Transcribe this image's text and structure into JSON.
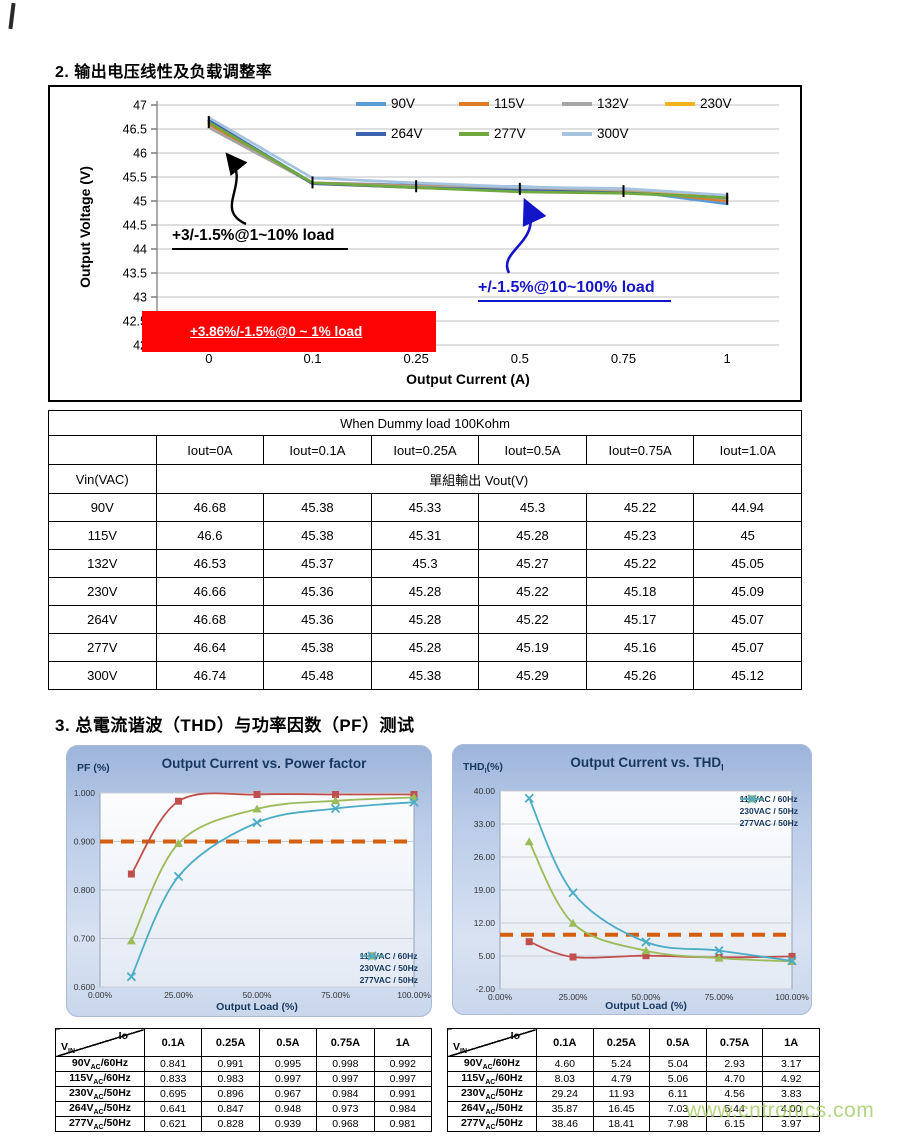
{
  "page": {
    "watermark": "www.cntronics.com"
  },
  "section2": {
    "heading": "2.  输出电压线性及负载调整率"
  },
  "section3": {
    "heading": "3.  总電流谐波（THD）与功率因数（PF）测试"
  },
  "chart_data": [
    {
      "id": "vout-vs-iout",
      "type": "line",
      "title": "",
      "xlabel": "Output Current (A)",
      "ylabel": "Output Voltage (V)",
      "categories": [
        "0",
        "0.1",
        "0.25",
        "0.5",
        "0.75",
        "1"
      ],
      "yticks": [
        "47",
        "46.5",
        "46",
        "45.5",
        "45",
        "44.5",
        "44",
        "43.5",
        "43",
        "42.5",
        "42"
      ],
      "ylim": [
        42,
        47
      ],
      "grid": true,
      "legend_position": "top-inside",
      "series": [
        {
          "name": "90V",
          "color": "#5B9BD5",
          "values": [
            46.68,
            45.38,
            45.33,
            45.3,
            45.22,
            44.94
          ]
        },
        {
          "name": "115V",
          "color": "#E07B2A",
          "values": [
            46.6,
            45.38,
            45.31,
            45.28,
            45.23,
            45.0
          ]
        },
        {
          "name": "132V",
          "color": "#A5A5A5",
          "values": [
            46.53,
            45.37,
            45.3,
            45.27,
            45.22,
            45.05
          ]
        },
        {
          "name": "230V",
          "color": "#F0B51C",
          "values": [
            46.66,
            45.36,
            45.28,
            45.22,
            45.18,
            45.09
          ]
        },
        {
          "name": "264V",
          "color": "#3D63AE",
          "values": [
            46.68,
            45.36,
            45.28,
            45.22,
            45.17,
            45.07
          ]
        },
        {
          "name": "277V",
          "color": "#6FA93F",
          "values": [
            46.64,
            45.38,
            45.28,
            45.19,
            45.16,
            45.07
          ]
        },
        {
          "name": "300V",
          "color": "#A6C3E2",
          "values": [
            46.74,
            45.48,
            45.38,
            45.29,
            45.26,
            45.12
          ]
        }
      ],
      "annotations": {
        "black_note": "+3/-1.5%@1~10% load",
        "blue_note": "+/-1.5%@10~100% load",
        "red_note": "+3.86%/-1.5%@0 ~ 1% load"
      }
    },
    {
      "id": "pf-vs-load",
      "type": "line",
      "title": "Output Current  vs. Power  factor",
      "xlabel": "Output Load (%)",
      "ylabel": "PF (%)",
      "x_percent": [
        10,
        25,
        50,
        75,
        100
      ],
      "xticks": [
        "0.00%",
        "25.00%",
        "50.00%",
        "75.00%",
        "100.00%"
      ],
      "xtick_values": [
        0,
        25,
        50,
        75,
        100
      ],
      "yticks": [
        "1.000",
        "0.900",
        "0.800",
        "0.700",
        "0.600"
      ],
      "ylim": [
        0.6,
        1.0
      ],
      "ref_line": 0.9,
      "ref_color": "#D35F0E",
      "grid": true,
      "legend_position": "bottom-right",
      "series": [
        {
          "name": "115VAC / 60Hz",
          "color": "#C0504D",
          "marker": "square",
          "values": [
            0.833,
            0.983,
            0.997,
            0.997,
            0.997
          ]
        },
        {
          "name": "230VAC / 50Hz",
          "color": "#9BBB59",
          "marker": "triangle",
          "values": [
            0.695,
            0.896,
            0.967,
            0.984,
            0.991
          ]
        },
        {
          "name": "277VAC / 50Hz",
          "color": "#4BACC6",
          "marker": "x",
          "values": [
            0.621,
            0.828,
            0.939,
            0.968,
            0.981
          ]
        }
      ]
    },
    {
      "id": "thd-vs-load",
      "type": "line",
      "title": "Output Current  vs. THD",
      "title_sub": "I",
      "xlabel": "Output Load (%)",
      "ylabel_main": "THD",
      "ylabel_sub": "I",
      "ylabel_suffix": "(%)",
      "x_percent": [
        10,
        25,
        50,
        75,
        100
      ],
      "xticks": [
        "0.00%",
        "25.00%",
        "50.00%",
        "75.00%",
        "100.00%"
      ],
      "xtick_values": [
        0,
        25,
        50,
        75,
        100
      ],
      "yticks": [
        "40.00",
        "33.00",
        "26.00",
        "19.00",
        "12.00",
        "5.00",
        "-2.00"
      ],
      "ylim": [
        -2,
        40
      ],
      "ref_line": 9.5,
      "ref_color": "#D35F0E",
      "grid": true,
      "legend_position": "top-right",
      "series": [
        {
          "name": "115VAC / 60Hz",
          "color": "#C0504D",
          "marker": "square",
          "values": [
            8.03,
            4.79,
            5.06,
            4.7,
            4.92
          ]
        },
        {
          "name": "230VAC / 50Hz",
          "color": "#9BBB59",
          "marker": "triangle",
          "values": [
            29.24,
            11.93,
            6.11,
            4.56,
            3.83
          ]
        },
        {
          "name": "277VAC / 50Hz",
          "color": "#4BACC6",
          "marker": "x",
          "values": [
            38.46,
            18.41,
            7.98,
            6.15,
            3.97
          ]
        }
      ]
    }
  ],
  "table1": {
    "caption": "When Dummy load 100Kohm",
    "row_header": "Vin(VAC)",
    "col_headers": [
      "Iout=0A",
      "Iout=0.1A",
      "Iout=0.25A",
      "Iout=0.5A",
      "Iout=0.75A",
      "Iout=1.0A"
    ],
    "span_header": "單組輸出  Vout(V)",
    "rows": [
      {
        "label": "90V",
        "values": [
          "46.68",
          "45.38",
          "45.33",
          "45.3",
          "45.22",
          "44.94"
        ]
      },
      {
        "label": "115V",
        "values": [
          "46.6",
          "45.38",
          "45.31",
          "45.28",
          "45.23",
          "45"
        ]
      },
      {
        "label": "132V",
        "values": [
          "46.53",
          "45.37",
          "45.3",
          "45.27",
          "45.22",
          "45.05"
        ]
      },
      {
        "label": "230V",
        "values": [
          "46.66",
          "45.36",
          "45.28",
          "45.22",
          "45.18",
          "45.09"
        ]
      },
      {
        "label": "264V",
        "values": [
          "46.68",
          "45.36",
          "45.28",
          "45.22",
          "45.17",
          "45.07"
        ]
      },
      {
        "label": "277V",
        "values": [
          "46.64",
          "45.38",
          "45.28",
          "45.19",
          "45.16",
          "45.07"
        ]
      },
      {
        "label": "300V",
        "values": [
          "46.74",
          "45.48",
          "45.38",
          "45.29",
          "45.26",
          "45.12"
        ]
      }
    ]
  },
  "pf_table": {
    "corner": {
      "top": "Io",
      "bottom_main": "V",
      "bottom_sub": "IN"
    },
    "col_headers": [
      "0.1A",
      "0.25A",
      "0.5A",
      "0.75A",
      "1A"
    ],
    "rows": [
      {
        "label": {
          "main": "90V",
          "sub": "AC",
          "rest": "/60Hz"
        },
        "values": [
          "0.841",
          "0.991",
          "0.995",
          "0.998",
          "0.992"
        ]
      },
      {
        "label": {
          "main": "115V",
          "sub": "AC",
          "rest": "/60Hz"
        },
        "values": [
          "0.833",
          "0.983",
          "0.997",
          "0.997",
          "0.997"
        ]
      },
      {
        "label": {
          "main": "230V",
          "sub": "AC",
          "rest": "/50Hz"
        },
        "values": [
          "0.695",
          "0.896",
          "0.967",
          "0.984",
          "0.991"
        ]
      },
      {
        "label": {
          "main": "264V",
          "sub": "AC",
          "rest": "/50Hz"
        },
        "values": [
          "0.641",
          "0.847",
          "0.948",
          "0.973",
          "0.984"
        ]
      },
      {
        "label": {
          "main": "277V",
          "sub": "AC",
          "rest": "/50Hz"
        },
        "values": [
          "0.621",
          "0.828",
          "0.939",
          "0.968",
          "0.981"
        ]
      }
    ]
  },
  "thd_table": {
    "corner": {
      "top": "Io",
      "bottom_main": "V",
      "bottom_sub": "IN"
    },
    "col_headers": [
      "0.1A",
      "0.25A",
      "0.5A",
      "0.75A",
      "1A"
    ],
    "rows": [
      {
        "label": {
          "main": "90V",
          "sub": "AC",
          "rest": "/60Hz"
        },
        "values": [
          "4.60",
          "5.24",
          "5.04",
          "2.93",
          "3.17"
        ]
      },
      {
        "label": {
          "main": "115V",
          "sub": "AC",
          "rest": "/60Hz"
        },
        "values": [
          "8.03",
          "4.79",
          "5.06",
          "4.70",
          "4.92"
        ]
      },
      {
        "label": {
          "main": "230V",
          "sub": "AC",
          "rest": "/50Hz"
        },
        "values": [
          "29.24",
          "11.93",
          "6.11",
          "4.56",
          "3.83"
        ]
      },
      {
        "label": {
          "main": "264V",
          "sub": "AC",
          "rest": "/50Hz"
        },
        "values": [
          "35.87",
          "16.45",
          "7.03",
          "5.44",
          "4.00"
        ]
      },
      {
        "label": {
          "main": "277V",
          "sub": "AC",
          "rest": "/50Hz"
        },
        "values": [
          "38.46",
          "18.41",
          "7.98",
          "6.15",
          "3.97"
        ]
      }
    ]
  }
}
